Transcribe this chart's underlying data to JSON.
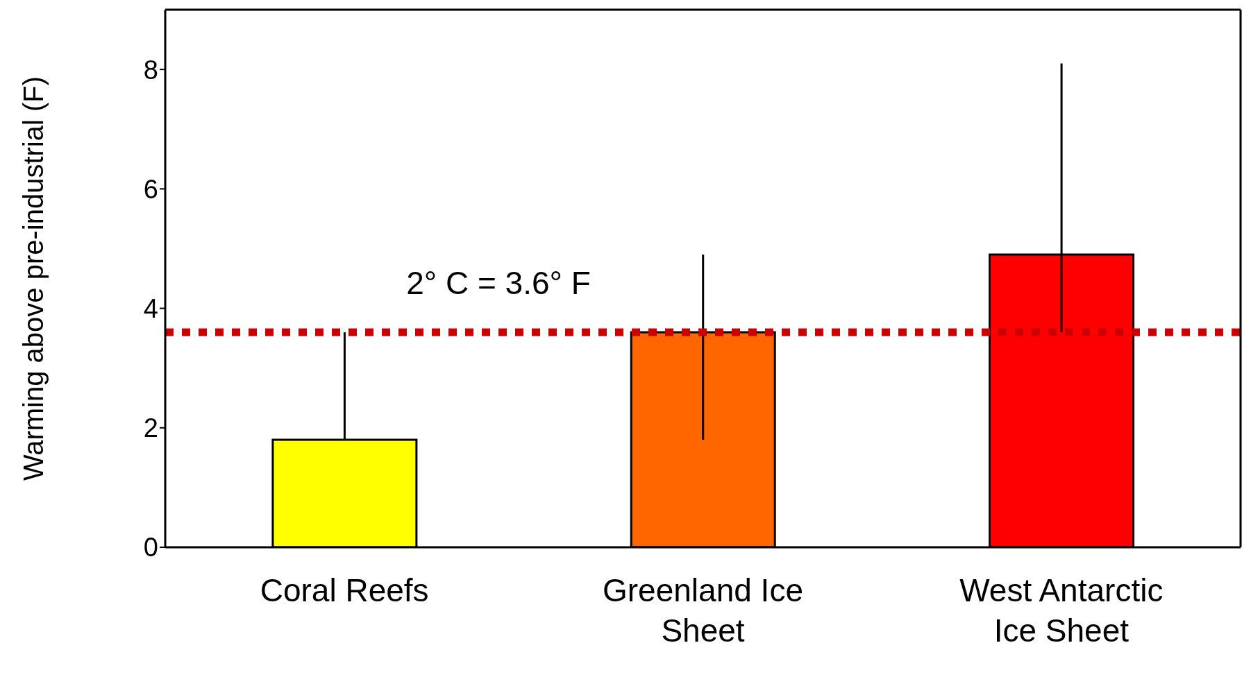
{
  "chart_data": {
    "type": "bar",
    "ylabel": "Warming above pre-industrial (F)",
    "categories": [
      "Coral Reefs",
      "Greenland Ice Sheet",
      "West Antarctic Ice Sheet"
    ],
    "values": [
      1.8,
      3.6,
      4.9
    ],
    "colors": [
      "#ffff00",
      "#ff6600",
      "#ff0000"
    ],
    "errors": [
      [
        1.8,
        3.6
      ],
      [
        1.8,
        4.9
      ],
      [
        3.6,
        8.1
      ]
    ],
    "ylim": [
      0,
      9
    ],
    "yticks": [
      0,
      2,
      4,
      6,
      8
    ],
    "grid": false,
    "legend": false,
    "ref_lines": [
      {
        "axis": "y",
        "value": 3.6,
        "label": "2° C = 3.6° F",
        "color": "#cc0000",
        "line_style": "dotted"
      }
    ]
  }
}
